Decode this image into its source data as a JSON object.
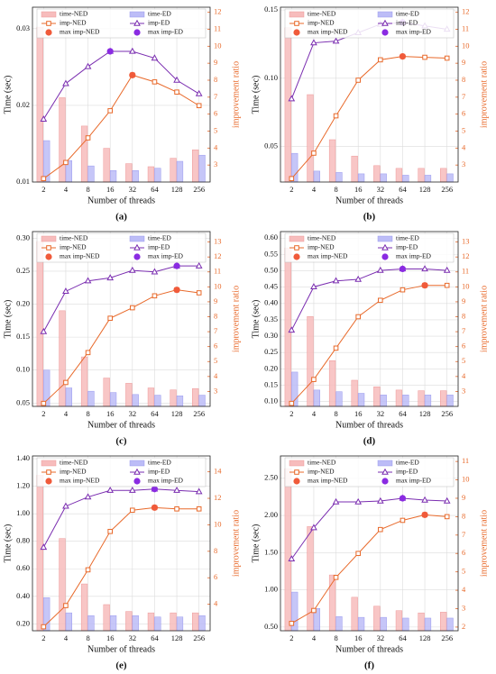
{
  "chart_data": [
    {
      "type": "bar_line",
      "caption": "(a)",
      "xlabel": "Number of threads",
      "ylabel": "Time (sec)",
      "y2label": "improvement ratio",
      "categories": [
        "2",
        "4",
        "8",
        "16",
        "32",
        "64",
        "128",
        "256"
      ],
      "grid": true,
      "ylim": [
        0.01,
        0.0328
      ],
      "yticks": [
        0.01,
        0.02,
        0.03
      ],
      "y2lim": [
        2,
        12.3
      ],
      "y2ticks": [
        3,
        4,
        5,
        6,
        7,
        8,
        9,
        10,
        11,
        12
      ],
      "series": [
        {
          "name": "time-NED",
          "mark": "bar",
          "color": "#f7bcbc",
          "values": [
            0.0302,
            0.021,
            0.0173,
            0.0144,
            0.0124,
            0.012,
            0.0131,
            0.0142
          ]
        },
        {
          "name": "time-ED",
          "mark": "bar",
          "color": "#bcbcf7",
          "values": [
            0.0154,
            0.0128,
            0.0121,
            0.0115,
            0.0115,
            0.0118,
            0.0127,
            0.0135
          ]
        },
        {
          "name": "imp-NED",
          "mark": "line",
          "marker": "square",
          "axis": "y2",
          "color": "#e8692a",
          "values": [
            2.2,
            3.15,
            4.6,
            6.2,
            8.3,
            7.9,
            7.3,
            6.5
          ]
        },
        {
          "name": "imp-ED",
          "mark": "line",
          "marker": "triangle",
          "axis": "y2",
          "color": "#7a2db0",
          "values": [
            5.7,
            7.8,
            8.8,
            9.7,
            9.7,
            9.3,
            8.0,
            7.2
          ]
        },
        {
          "name": "max imp-NED",
          "mark": "dot",
          "axis": "y2",
          "color": "#f05a3a",
          "values": [
            null,
            null,
            null,
            null,
            8.3,
            null,
            null,
            null
          ]
        },
        {
          "name": "max imp-ED",
          "mark": "dot",
          "axis": "y2",
          "color": "#8a2be2",
          "values": [
            null,
            null,
            null,
            9.7,
            null,
            null,
            null,
            null
          ]
        }
      ]
    },
    {
      "type": "bar_line",
      "caption": "(b)",
      "xlabel": "Number of threads",
      "ylabel": "Time (sec)",
      "y2label": "improvement ratio",
      "categories": [
        "2",
        "4",
        "8",
        "16",
        "32",
        "64",
        "128",
        "256"
      ],
      "grid": true,
      "ylim": [
        0.024,
        0.152
      ],
      "yticks": [
        0.05,
        {
          "value": 0.1,
          "label": "0.10"
        },
        0.15
      ],
      "y2lim": [
        2,
        12.3
      ],
      "y2ticks": [
        3,
        4,
        5,
        6,
        7,
        8,
        9,
        10,
        11,
        12
      ],
      "series": [
        {
          "name": "time-NED",
          "mark": "bar",
          "color": "#f7bcbc",
          "values": [
            0.137,
            0.088,
            0.055,
            0.043,
            0.036,
            0.034,
            0.034,
            0.034
          ]
        },
        {
          "name": "time-ED",
          "mark": "bar",
          "color": "#bcbcf7",
          "values": [
            0.045,
            0.032,
            0.031,
            0.03,
            0.03,
            0.029,
            0.029,
            0.03
          ]
        },
        {
          "name": "imp-NED",
          "mark": "line",
          "marker": "square",
          "axis": "y2",
          "color": "#e8692a",
          "values": [
            2.2,
            3.7,
            5.9,
            8.0,
            9.2,
            9.4,
            9.35,
            9.3
          ]
        },
        {
          "name": "imp-ED",
          "mark": "line",
          "marker": "triangle",
          "axis": "y2",
          "color": "#7a2db0",
          "values": [
            6.9,
            10.2,
            10.3,
            10.8,
            11.3,
            11.4,
            11.2,
            11.0
          ]
        },
        {
          "name": "max imp-NED",
          "mark": "dot",
          "axis": "y2",
          "color": "#f05a3a",
          "values": [
            null,
            null,
            null,
            null,
            null,
            9.4,
            null,
            null
          ]
        },
        {
          "name": "max imp-ED",
          "mark": "dot",
          "axis": "y2",
          "color": "#8a2be2",
          "values": [
            null,
            null,
            null,
            null,
            null,
            11.4,
            null,
            null
          ]
        }
      ]
    },
    {
      "type": "bar_line",
      "caption": "(c)",
      "xlabel": "Number of threads",
      "ylabel": "Time (sec)",
      "y2label": "improvement ratio",
      "categories": [
        "2",
        "4",
        "8",
        "16",
        "32",
        "64",
        "128",
        "256"
      ],
      "grid": true,
      "ylim": [
        0.045,
        0.31
      ],
      "yticks": [
        0.05,
        {
          "value": 0.1,
          "label": "0.10"
        },
        0.15,
        {
          "value": 0.2,
          "label": "0.20"
        },
        0.25,
        {
          "value": 0.3,
          "label": "0.30"
        }
      ],
      "y2lim": [
        2,
        13.7
      ],
      "y2ticks": [
        3,
        4,
        5,
        6,
        7,
        8,
        9,
        10,
        11,
        12,
        13
      ],
      "series": [
        {
          "name": "time-NED",
          "mark": "bar",
          "color": "#f7bcbc",
          "values": [
            0.295,
            0.19,
            0.12,
            0.088,
            0.08,
            0.073,
            0.07,
            0.072
          ]
        },
        {
          "name": "time-ED",
          "mark": "bar",
          "color": "#bcbcf7",
          "values": [
            0.1,
            0.073,
            0.068,
            0.066,
            0.063,
            0.062,
            0.061,
            0.062
          ]
        },
        {
          "name": "imp-NED",
          "mark": "line",
          "marker": "square",
          "axis": "y2",
          "color": "#e8692a",
          "values": [
            2.2,
            3.6,
            5.6,
            7.9,
            8.6,
            9.4,
            9.8,
            9.6
          ]
        },
        {
          "name": "imp-ED",
          "mark": "line",
          "marker": "triangle",
          "axis": "y2",
          "color": "#7a2db0",
          "values": [
            7.0,
            9.7,
            10.4,
            10.6,
            11.1,
            11.0,
            11.4,
            11.4
          ]
        },
        {
          "name": "max imp-NED",
          "mark": "dot",
          "axis": "y2",
          "color": "#f05a3a",
          "values": [
            null,
            null,
            null,
            null,
            null,
            null,
            9.8,
            null
          ]
        },
        {
          "name": "max imp-ED",
          "mark": "dot",
          "axis": "y2",
          "color": "#8a2be2",
          "values": [
            null,
            null,
            null,
            null,
            null,
            null,
            11.4,
            null
          ]
        }
      ]
    },
    {
      "type": "bar_line",
      "caption": "(d)",
      "xlabel": "Number of threads",
      "ylabel": "Time (sec)",
      "y2label": "improvement ratio",
      "categories": [
        "2",
        "4",
        "8",
        "16",
        "32",
        "64",
        "128",
        "256"
      ],
      "grid": true,
      "ylim": [
        0.085,
        0.62
      ],
      "yticks": [
        {
          "value": 0.1,
          "label": "0.10"
        },
        0.15,
        {
          "value": 0.2,
          "label": "0.20"
        },
        0.25,
        {
          "value": 0.3,
          "label": "0.30"
        },
        0.35,
        {
          "value": 0.4,
          "label": "0.40"
        },
        0.45,
        {
          "value": 0.5,
          "label": "0.50"
        },
        0.55,
        {
          "value": 0.6,
          "label": "0.60"
        }
      ],
      "y2lim": [
        2,
        13.7
      ],
      "y2ticks": [
        3,
        4,
        5,
        6,
        7,
        8,
        9,
        10,
        11,
        12,
        13
      ],
      "series": [
        {
          "name": "time-NED",
          "mark": "bar",
          "color": "#f7bcbc",
          "values": [
            0.57,
            0.36,
            0.225,
            0.165,
            0.145,
            0.135,
            0.133,
            0.133
          ]
        },
        {
          "name": "time-ED",
          "mark": "bar",
          "color": "#bcbcf7",
          "values": [
            0.19,
            0.135,
            0.13,
            0.125,
            0.12,
            0.12,
            0.12,
            0.12
          ]
        },
        {
          "name": "imp-NED",
          "mark": "line",
          "marker": "square",
          "axis": "y2",
          "color": "#e8692a",
          "values": [
            2.2,
            3.8,
            5.9,
            8.0,
            9.1,
            9.8,
            10.1,
            10.1
          ]
        },
        {
          "name": "imp-ED",
          "mark": "line",
          "marker": "triangle",
          "axis": "y2",
          "color": "#7a2db0",
          "values": [
            7.1,
            10.0,
            10.4,
            10.5,
            11.1,
            11.2,
            11.2,
            11.1
          ]
        },
        {
          "name": "max imp-NED",
          "mark": "dot",
          "axis": "y2",
          "color": "#f05a3a",
          "values": [
            null,
            null,
            null,
            null,
            null,
            null,
            10.1,
            null
          ]
        },
        {
          "name": "max imp-ED",
          "mark": "dot",
          "axis": "y2",
          "color": "#8a2be2",
          "values": [
            null,
            null,
            null,
            null,
            null,
            11.2,
            null,
            null
          ]
        }
      ]
    },
    {
      "type": "bar_line",
      "caption": "(e)",
      "xlabel": "Number of threads",
      "ylabel": "Time (sec)",
      "y2label": "improvement ratio",
      "categories": [
        "2",
        "4",
        "8",
        "16",
        "32",
        "64",
        "128",
        "256"
      ],
      "grid": true,
      "ylim": [
        0.15,
        1.42
      ],
      "yticks": [
        {
          "value": 0.2,
          "label": "0.20"
        },
        {
          "value": 0.4,
          "label": "0.40"
        },
        {
          "value": 0.6,
          "label": "0.60"
        },
        {
          "value": 0.8,
          "label": "0.80"
        },
        {
          "value": 1,
          "label": "1.00"
        },
        {
          "value": 1.2,
          "label": "1.20"
        },
        {
          "value": 1.4,
          "label": "1.40"
        }
      ],
      "y2lim": [
        2,
        15.2
      ],
      "y2ticks": [
        4,
        6,
        8,
        10,
        12,
        14
      ],
      "series": [
        {
          "name": "time-NED",
          "mark": "bar",
          "color": "#f7bcbc",
          "values": [
            1.28,
            0.82,
            0.49,
            0.34,
            0.29,
            0.28,
            0.28,
            0.28
          ]
        },
        {
          "name": "time-ED",
          "mark": "bar",
          "color": "#bcbcf7",
          "values": [
            0.39,
            0.28,
            0.26,
            0.26,
            0.26,
            0.25,
            0.25,
            0.26
          ]
        },
        {
          "name": "imp-NED",
          "mark": "line",
          "marker": "square",
          "axis": "y2",
          "color": "#e8692a",
          "values": [
            2.3,
            3.9,
            6.6,
            9.5,
            11.1,
            11.3,
            11.2,
            11.2
          ]
        },
        {
          "name": "imp-ED",
          "mark": "line",
          "marker": "triangle",
          "axis": "y2",
          "color": "#7a2db0",
          "values": [
            8.3,
            11.4,
            12.1,
            12.6,
            12.6,
            12.7,
            12.6,
            12.5
          ]
        },
        {
          "name": "max imp-NED",
          "mark": "dot",
          "axis": "y2",
          "color": "#f05a3a",
          "values": [
            null,
            null,
            null,
            null,
            null,
            11.3,
            null,
            null
          ]
        },
        {
          "name": "max imp-ED",
          "mark": "dot",
          "axis": "y2",
          "color": "#8a2be2",
          "values": [
            null,
            null,
            null,
            null,
            null,
            12.7,
            null,
            null
          ]
        }
      ]
    },
    {
      "type": "bar_line",
      "caption": "(f)",
      "xlabel": "Number of threads",
      "ylabel": "Time (sec)",
      "y2label": "improvement ratio",
      "categories": [
        "2",
        "4",
        "8",
        "16",
        "32",
        "64",
        "128",
        "256"
      ],
      "grid": true,
      "ylim": [
        0.45,
        2.8
      ],
      "yticks": [
        {
          "value": 0.5,
          "label": "0.50"
        },
        {
          "value": 1,
          "label": "1.00"
        },
        {
          "value": 1.5,
          "label": "1.50"
        },
        {
          "value": 2,
          "label": "2.00"
        },
        {
          "value": 2.5,
          "label": "2.50"
        }
      ],
      "y2lim": [
        1.8,
        11.3
      ],
      "y2ticks": [
        2,
        3,
        4,
        5,
        6,
        7,
        8,
        9,
        10,
        11
      ],
      "series": [
        {
          "name": "time-NED",
          "mark": "bar",
          "color": "#f7bcbc",
          "values": [
            2.63,
            1.85,
            1.2,
            0.9,
            0.78,
            0.72,
            0.69,
            0.7
          ]
        },
        {
          "name": "time-ED",
          "mark": "bar",
          "color": "#bcbcf7",
          "values": [
            0.97,
            0.75,
            0.64,
            0.63,
            0.63,
            0.62,
            0.62,
            0.62
          ]
        },
        {
          "name": "imp-NED",
          "mark": "line",
          "marker": "square",
          "axis": "y2",
          "color": "#e8692a",
          "values": [
            2.2,
            2.9,
            4.7,
            6.0,
            7.3,
            7.8,
            8.1,
            8.0
          ]
        },
        {
          "name": "imp-ED",
          "mark": "line",
          "marker": "triangle",
          "axis": "y2",
          "color": "#7a2db0",
          "values": [
            5.7,
            7.4,
            8.8,
            8.8,
            8.85,
            9.0,
            8.9,
            8.85
          ]
        },
        {
          "name": "max imp-NED",
          "mark": "dot",
          "axis": "y2",
          "color": "#f05a3a",
          "values": [
            null,
            null,
            null,
            null,
            null,
            null,
            8.1,
            null
          ]
        },
        {
          "name": "max imp-ED",
          "mark": "dot",
          "axis": "y2",
          "color": "#8a2be2",
          "values": [
            null,
            null,
            null,
            null,
            null,
            9.0,
            null,
            null
          ]
        }
      ]
    }
  ]
}
